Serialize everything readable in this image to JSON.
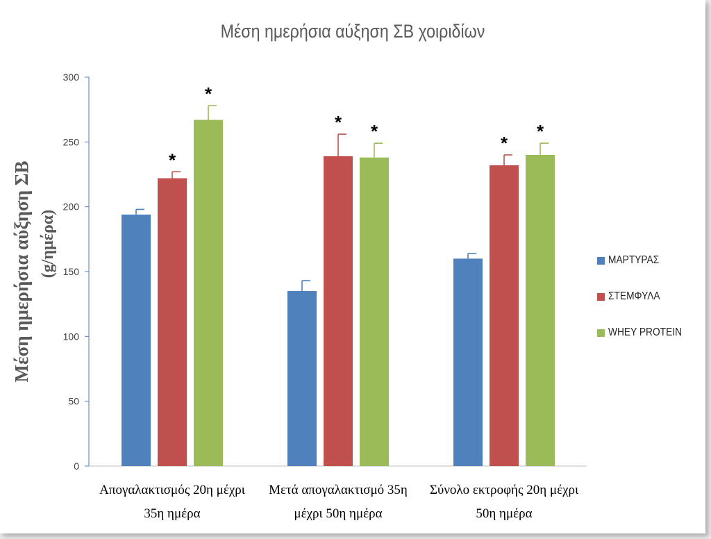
{
  "chart_data": {
    "type": "bar",
    "title": "Μέση ημερήσια αύξηση ΣΒ χοιριδίων",
    "ylabel_line1": "Μέση ημερήσια αύξηση  ΣΒ",
    "ylabel_line2": "(g/ημέρα)",
    "xlabel": "",
    "ylim": [
      0,
      300
    ],
    "yticks": [
      "0",
      "50",
      "100",
      "150",
      "200",
      "250",
      "300"
    ],
    "categories": [
      [
        "Απογαλακτισμός 20η μέχρι",
        "35η ημέρα"
      ],
      [
        "Μετά απογαλακτισμό 35η",
        "μέχρι 50η ημέρα"
      ],
      [
        "Σύνολο εκτροφής 20η μέχρι",
        "50η ημέρα"
      ]
    ],
    "series": [
      {
        "name": "ΜΑΡΤΥΡΑΣ",
        "color": "#4f81bd",
        "values": [
          194,
          135,
          160
        ],
        "errors": [
          4,
          8,
          4
        ],
        "marks": [
          "",
          "",
          ""
        ]
      },
      {
        "name": "ΣΤΕΜΦΥΛΑ",
        "color": "#c0504d",
        "values": [
          222,
          239,
          232
        ],
        "errors": [
          5,
          17,
          8
        ],
        "marks": [
          "*",
          "*",
          "*"
        ]
      },
      {
        "name": "WHEY PROTEIN",
        "color": "#9bbb59",
        "values": [
          267,
          238,
          240
        ],
        "errors": [
          11,
          11,
          9
        ],
        "marks": [
          "*",
          "*",
          "*"
        ]
      }
    ],
    "grid": false,
    "legend_position": "right"
  }
}
